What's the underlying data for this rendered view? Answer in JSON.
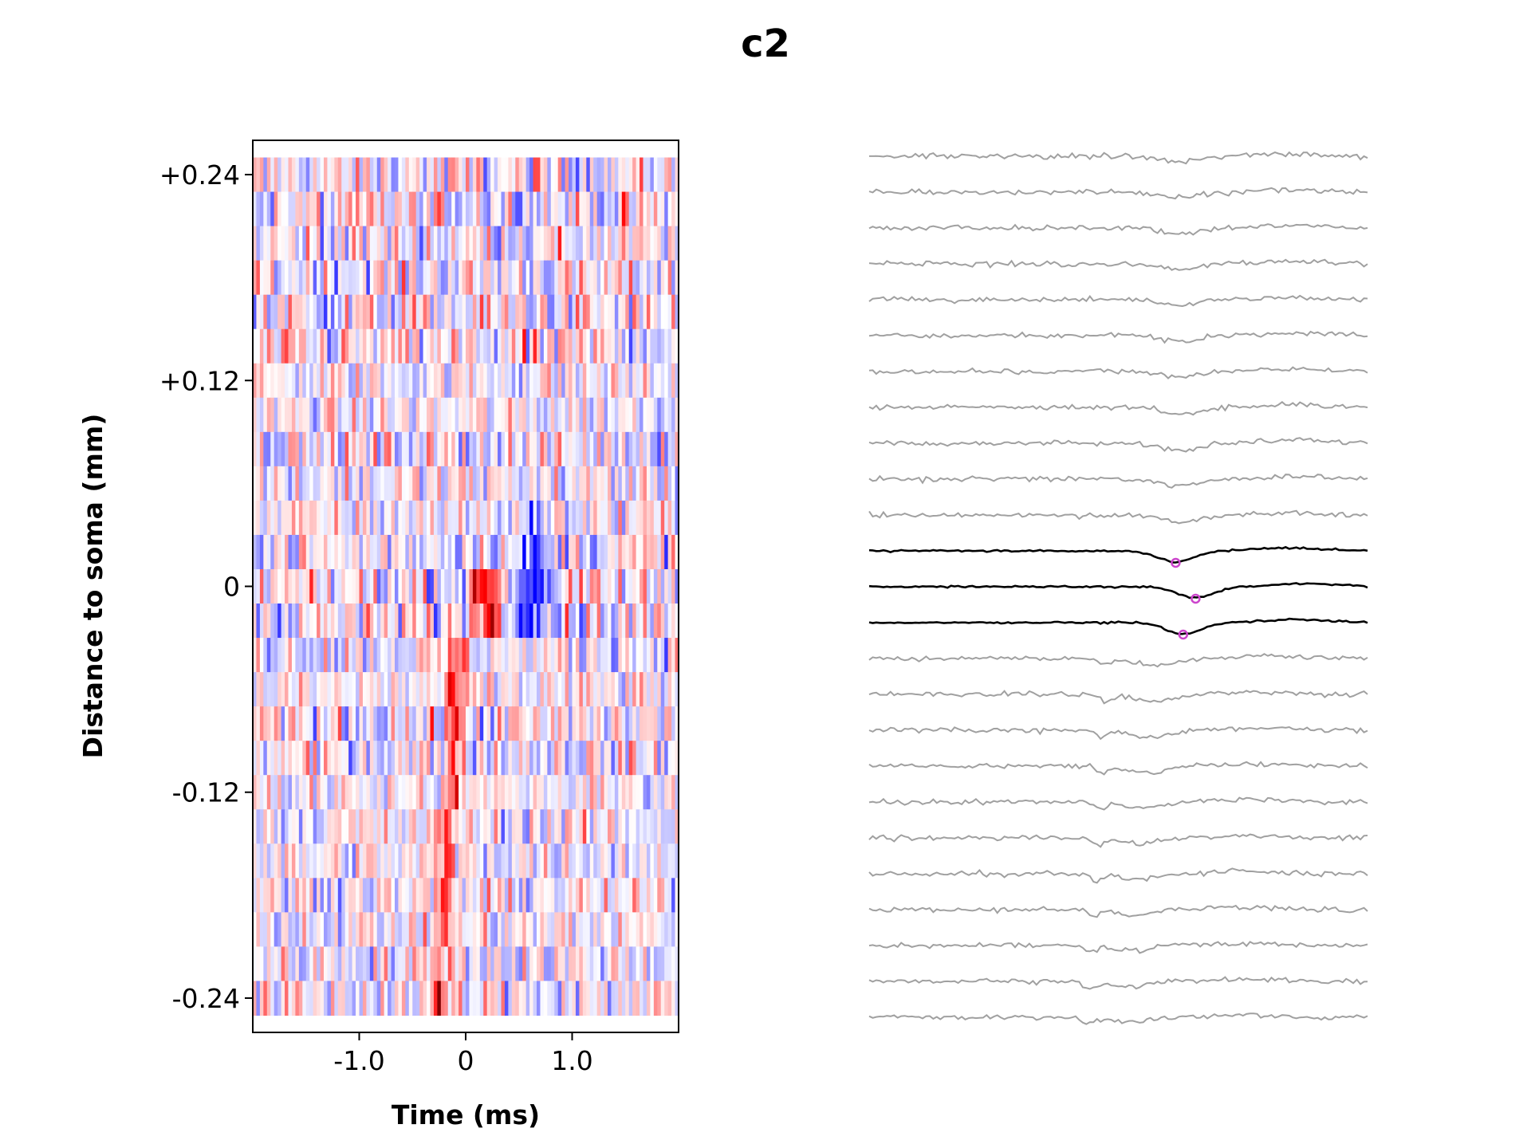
{
  "figure": {
    "title": "c2"
  },
  "chart_data": [
    {
      "type": "heatmap",
      "xlabel": "Time (ms)",
      "ylabel": "Distance to soma (mm)",
      "xlim": [
        -2.0,
        2.0
      ],
      "ylim": [
        -0.26,
        0.26
      ],
      "x_ticks": [
        {
          "value": -1.0,
          "label": "-1.0"
        },
        {
          "value": 0,
          "label": "0"
        },
        {
          "value": 1.0,
          "label": "1.0"
        }
      ],
      "y_ticks": [
        {
          "value": 0.24,
          "label": "+0.24"
        },
        {
          "value": 0.12,
          "label": "+0.12"
        },
        {
          "value": 0,
          "label": "0"
        },
        {
          "value": -0.12,
          "label": "-0.12"
        },
        {
          "value": -0.24,
          "label": "-0.24"
        }
      ],
      "rows": 25,
      "row_spacing_mm": 0.02,
      "time_bins": 120,
      "colormap": "bwr",
      "colors": {
        "negative": "#0000ff",
        "zero": "#ffffff",
        "positive": "#ff0000",
        "peak": "#800000"
      },
      "features": [
        {
          "description": "strong positive peak",
          "distance_mm": [
            -0.02,
            0.0
          ],
          "time_ms": [
            0.1,
            0.3
          ]
        },
        {
          "description": "negative trough",
          "distance_mm": [
            -0.02,
            0.04
          ],
          "time_ms": [
            0.5,
            0.8
          ]
        },
        {
          "description": "propagating positive band",
          "distance_mm": [
            -0.24,
            -0.04
          ],
          "time_ms": [
            -0.2,
            0.1
          ]
        }
      ]
    },
    {
      "type": "line",
      "series_count": 25,
      "highlighted_rows": [
        11,
        12,
        13
      ],
      "colors": {
        "trace": "#a0a0a0",
        "highlight": "#000000",
        "marker": "#cc44cc"
      },
      "troughs": [
        {
          "row": 11,
          "time_ms": 0.46
        },
        {
          "row": 12,
          "time_ms": 0.62
        },
        {
          "row": 13,
          "time_ms": 0.52
        }
      ]
    }
  ]
}
